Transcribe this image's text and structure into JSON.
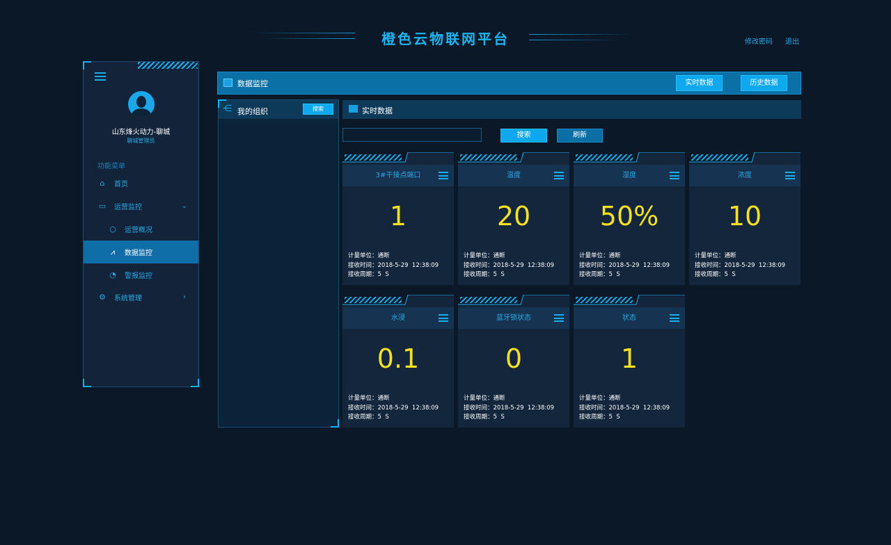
{
  "header": {
    "title": "橙色云物联网平台",
    "change_password": "修改密码",
    "logout": "退出"
  },
  "sidebar": {
    "org_name": "山东烽火动力-聊城",
    "role": "聊城管理员",
    "menu_title": "功能菜单",
    "items": [
      {
        "label": "首页",
        "icon": "home-icon"
      },
      {
        "label": "运营监控",
        "icon": "monitor-icon",
        "expanded": true
      },
      {
        "label": "运营概况",
        "icon": "overview-icon",
        "sub": true
      },
      {
        "label": "数据监控",
        "icon": "line-chart-icon",
        "sub": true,
        "active": true
      },
      {
        "label": "警报监控",
        "icon": "gauge-icon",
        "sub": true
      },
      {
        "label": "系统管理",
        "icon": "gear-icon"
      }
    ]
  },
  "panel": {
    "title": "数据监控",
    "realtime_btn": "实时数据",
    "history_btn": "历史数据"
  },
  "org": {
    "title": "我的组织",
    "search_btn": "搜索"
  },
  "realtime": {
    "title": "实时数据",
    "search_value": "",
    "search_btn": "搜索",
    "refresh_btn": "刷新"
  },
  "labels": {
    "unit": "计量单位：",
    "time": "接收时间：",
    "period": "接收周期："
  },
  "cards": [
    {
      "name": "3#干接点端口",
      "value": "1",
      "unit": "通断",
      "time": "2018-5-29  12:38:09",
      "period": "5  S"
    },
    {
      "name": "温度",
      "value": "20",
      "unit": "通断",
      "time": "2018-5-29  12:38:09",
      "period": "5  S"
    },
    {
      "name": "湿度",
      "value": "50%",
      "unit": "通断",
      "time": "2018-5-29  12:38:09",
      "period": "5  S"
    },
    {
      "name": "浓度",
      "value": "10",
      "unit": "通断",
      "time": "2018-5-29  12:38:09",
      "period": "5  S"
    },
    {
      "name": "水浸",
      "value": "0.1",
      "unit": "通断",
      "time": "2018-5-29  12:38:09",
      "period": "5  S"
    },
    {
      "name": "蓝牙锁状态",
      "value": "0",
      "unit": "通断",
      "time": "2018-5-29  12:38:09",
      "period": "5  S"
    },
    {
      "name": "状态",
      "value": "1",
      "unit": "通断",
      "time": "2018-5-29  12:38:09",
      "period": "5  S"
    }
  ],
  "colors": {
    "accent": "#1ab0ee",
    "value": "#f5e021",
    "active": "#0f6ea8"
  }
}
